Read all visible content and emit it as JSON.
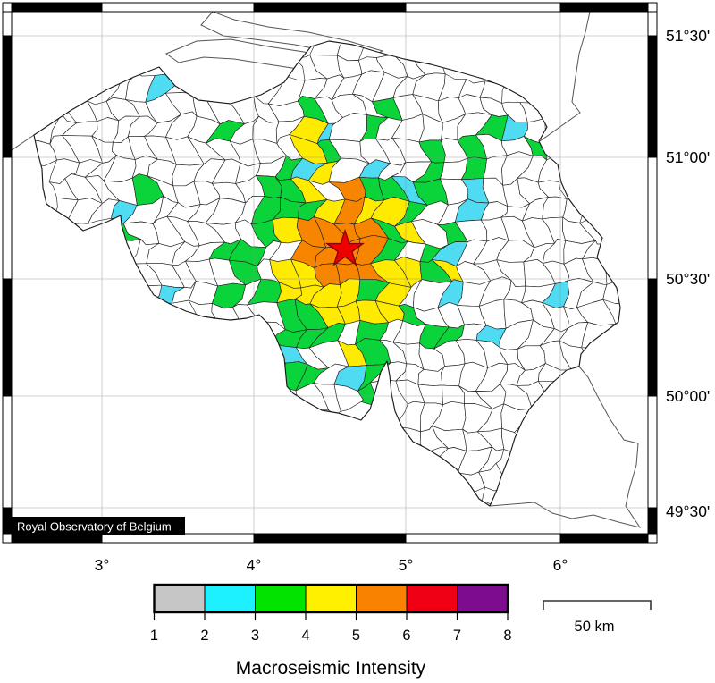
{
  "map": {
    "attribution": "Royal Observatory of Belgium",
    "lat_labels": [
      "51°30'",
      "51°00'",
      "50°30'",
      "50°00'",
      "49°30'"
    ],
    "lon_labels": [
      "3°",
      "4°",
      "5°",
      "6°"
    ],
    "epicenter": {
      "symbol": "star",
      "fill": "#ee0000",
      "outline": "#8f0000"
    },
    "region_fill": "#ffffff",
    "border_color": "#1a1a1a"
  },
  "legend": {
    "title": "Macroseismic Intensity",
    "tick_labels": [
      "1",
      "2",
      "3",
      "4",
      "5",
      "6",
      "7",
      "8"
    ],
    "segment_colors": [
      "#c6c6c6",
      "#1df0ff",
      "#00e400",
      "#fff000",
      "#f98200",
      "#f00014",
      "#7d0c8e"
    ]
  },
  "intensity_scale": {
    "type": "colorbar",
    "values": [
      1,
      2,
      3,
      4,
      5,
      6,
      7,
      8
    ],
    "colors_between": [
      "#c6c6c6",
      "#1df0ff",
      "#00e400",
      "#fff000",
      "#f98200",
      "#f00014",
      "#7d0c8e"
    ]
  },
  "scale_bar": {
    "label": "50 km"
  },
  "map_palette": {
    "orange": "#f78500",
    "yellow": "#ffeb00",
    "green": "#0bd33a",
    "cyan": "#4fdbf2",
    "white": "#ffffff"
  }
}
